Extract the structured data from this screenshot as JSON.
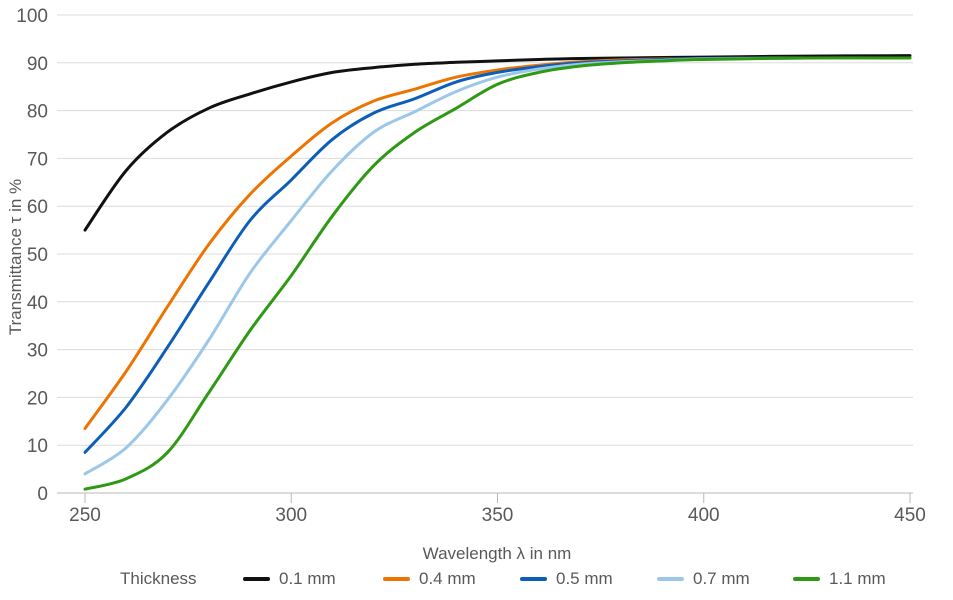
{
  "chart_data": {
    "type": "line",
    "title": "",
    "xlabel": "Wavelength λ in nm",
    "ylabel": "Transmittance τ in %",
    "xlim": [
      250,
      450
    ],
    "ylim": [
      0,
      100
    ],
    "xticks": [
      250,
      300,
      350,
      400,
      450
    ],
    "yticks": [
      0,
      10,
      20,
      30,
      40,
      50,
      60,
      70,
      80,
      90,
      100
    ],
    "grid": "horizontal",
    "legend_position": "bottom",
    "legend_title": "Thickness",
    "x": [
      250,
      260,
      270,
      280,
      290,
      300,
      310,
      320,
      330,
      340,
      350,
      360,
      370,
      380,
      390,
      400,
      425,
      450
    ],
    "series": [
      {
        "name": "0.1 mm",
        "color": "#111111",
        "values": [
          55,
          67.5,
          75.5,
          80.5,
          83.5,
          86,
          88,
          89,
          89.7,
          90.1,
          90.4,
          90.7,
          90.9,
          91,
          91.1,
          91.2,
          91.4,
          91.5
        ]
      },
      {
        "name": "0.4 mm",
        "color": "#ee7402",
        "values": [
          13.5,
          25.5,
          39,
          52,
          62.5,
          70.5,
          77.5,
          82,
          84.5,
          87,
          88.5,
          89.5,
          90.2,
          90.6,
          90.8,
          90.9,
          91,
          91
        ]
      },
      {
        "name": "0.5 mm",
        "color": "#0d5eb8",
        "values": [
          8.5,
          18,
          30.5,
          44,
          57,
          65.5,
          74,
          79.5,
          82.5,
          86,
          88,
          89.2,
          90,
          90.4,
          90.7,
          90.9,
          91,
          91
        ]
      },
      {
        "name": "0.7 mm",
        "color": "#9cc7e9",
        "values": [
          4,
          9.5,
          19.5,
          32,
          46,
          57,
          67.5,
          75.5,
          79.8,
          84,
          87,
          88.7,
          89.7,
          90.2,
          90.5,
          90.8,
          91,
          91
        ]
      },
      {
        "name": "1.1 mm",
        "color": "#2e9913",
        "values": [
          0.8,
          3,
          8.5,
          21,
          34,
          45.5,
          58,
          68.5,
          75.5,
          80.5,
          85.5,
          88,
          89.3,
          90,
          90.4,
          90.7,
          91,
          91
        ]
      }
    ],
    "colors": {
      "background": "#ffffff",
      "grid": "#dcdcdc",
      "axis": "#b9b9b9",
      "text": "#595959"
    }
  }
}
